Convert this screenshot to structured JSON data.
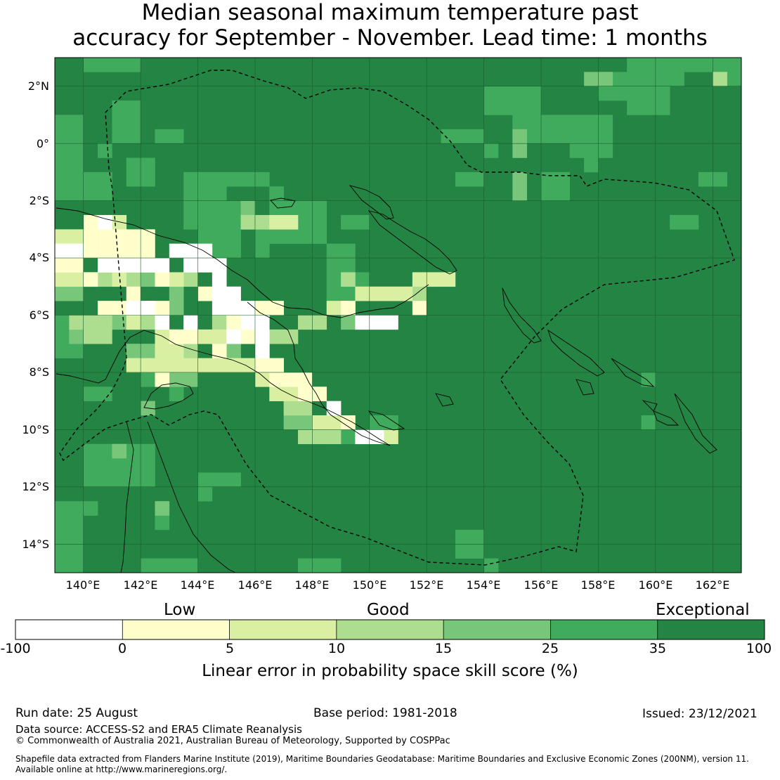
{
  "title": {
    "line1": "Median seasonal maximum temperature past",
    "line2": "accuracy for September - November. Lead time: 1 months"
  },
  "map": {
    "lat_labels": [
      "2°N",
      "0°",
      "2°S",
      "4°S",
      "6°S",
      "8°S",
      "10°S",
      "12°S",
      "14°S"
    ],
    "lon_labels": [
      "140°E",
      "142°E",
      "144°E",
      "146°E",
      "148°E",
      "150°E",
      "152°E",
      "154°E",
      "156°E",
      "158°E",
      "160°E",
      "162°E"
    ],
    "extent": {
      "lon_min": 139.0,
      "lon_max": 163.0,
      "lat_min": -15.0,
      "lat_max": 3.0
    },
    "grid_lines": true,
    "boundary_style": "dashed",
    "colors": {
      "band_neg": "#ffffff",
      "band_0_5": "#ffffcc",
      "band_5_10": "#d9f0a3",
      "band_10_15": "#addd8e",
      "band_15_25": "#78c679",
      "band_25_35": "#41ab5d",
      "band_35_100": "#238443"
    }
  },
  "legend": {
    "categories": [
      "Low",
      "Good",
      "Exceptional"
    ],
    "ticks": [
      "-100",
      "0",
      "5",
      "10",
      "15",
      "25",
      "35",
      "100"
    ],
    "colors": [
      "#ffffff",
      "#ffffcc",
      "#d9f0a3",
      "#addd8e",
      "#78c679",
      "#41ab5d",
      "#238443"
    ],
    "title": "Linear error in probability space skill score (%)"
  },
  "footer": {
    "run_date": "Run date: 25 August",
    "base_period": "Base period: 1981-2018",
    "issued": "Issued: 23/12/2021",
    "data_source": "Data source: ACCESS-S2 and ERA5 Climate Reanalysis",
    "copyright": "© Commonwealth of Australia 2021, Australian Bureau of Meteorology, Supported by COSPPac",
    "shapefile_line1": "Shapefile data extracted from Flanders Marine Institute (2019), Maritime Boundaries Geodatabase: Maritime Boundaries and Exclusive Economic Zones (200NM), version 11.",
    "shapefile_line2": "Available online at http://www.marineregions.org/."
  }
}
